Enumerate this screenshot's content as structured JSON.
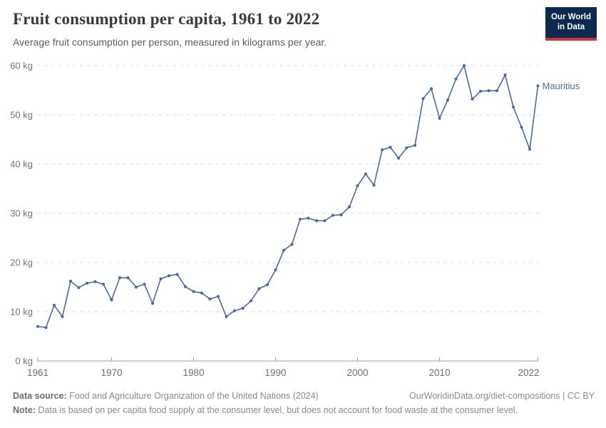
{
  "header": {
    "title": "Fruit consumption per capita, 1961 to 2022",
    "subtitle": "Average fruit consumption per person, measured in kilograms per year.",
    "logo": {
      "line1": "Our World",
      "line2": "in Data"
    }
  },
  "chart_data": {
    "type": "line",
    "title": "Fruit consumption per capita, 1961 to 2022",
    "xlabel": "",
    "ylabel": "",
    "xlim": [
      1961,
      2022
    ],
    "ylim": [
      0,
      60
    ],
    "x_ticks": [
      1961,
      1970,
      1980,
      1990,
      2000,
      2010,
      2022
    ],
    "y_ticks": [
      0,
      10,
      20,
      30,
      40,
      50,
      60
    ],
    "y_tick_suffix": " kg",
    "grid": "horizontal-dashed",
    "legend_position": "end-of-line-label",
    "series": [
      {
        "name": "Mauritius",
        "color": "#4C6A9C",
        "x": [
          1961,
          1962,
          1963,
          1964,
          1965,
          1966,
          1967,
          1968,
          1969,
          1970,
          1971,
          1972,
          1973,
          1974,
          1975,
          1976,
          1977,
          1978,
          1979,
          1980,
          1981,
          1982,
          1983,
          1984,
          1985,
          1986,
          1987,
          1988,
          1989,
          1990,
          1991,
          1992,
          1993,
          1994,
          1995,
          1996,
          1997,
          1998,
          1999,
          2000,
          2001,
          2002,
          2003,
          2004,
          2005,
          2006,
          2007,
          2008,
          2009,
          2010,
          2011,
          2012,
          2013,
          2014,
          2015,
          2016,
          2017,
          2018,
          2019,
          2020,
          2021,
          2022
        ],
        "values": [
          7.0,
          6.8,
          11.3,
          9.0,
          16.2,
          14.9,
          15.8,
          16.1,
          15.6,
          12.4,
          16.9,
          16.9,
          15.0,
          15.6,
          11.7,
          16.7,
          17.3,
          17.6,
          15.1,
          14.1,
          13.8,
          12.6,
          13.1,
          9.0,
          10.2,
          10.7,
          12.2,
          14.7,
          15.5,
          18.5,
          22.5,
          23.7,
          28.8,
          29.0,
          28.5,
          28.5,
          29.6,
          29.7,
          31.3,
          35.6,
          38.0,
          35.7,
          42.9,
          43.4,
          41.2,
          43.3,
          43.8,
          53.3,
          55.3,
          49.3,
          53.0,
          57.3,
          60.0,
          53.2,
          54.8,
          54.9,
          54.9,
          58.1,
          51.6,
          47.5,
          43.0,
          55.9
        ]
      }
    ],
    "colors": {
      "line": "#4C6A9C",
      "gridline": "#dddddd",
      "axis": "#9e9e9e",
      "tick_label": "#737373"
    }
  },
  "footer": {
    "datasource_label": "Data source:",
    "datasource_text": " Food and Agriculture Organization of the United Nations (2024)",
    "credit": "OurWorldinData.org/diet-compositions | CC BY",
    "note_label": "Note:",
    "note_text": " Data is based on per capita food supply at the consumer level, but does not account for food waste at the consumer level."
  }
}
